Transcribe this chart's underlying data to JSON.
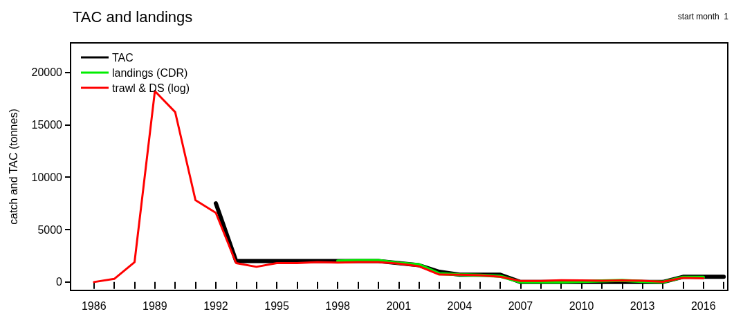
{
  "chart_data": {
    "type": "line",
    "title": "TAC and landings",
    "ylabel": "catch and TAC (tonnes)",
    "annotations": [
      "start month  1"
    ],
    "xlim": [
      1984.85,
      2017.2
    ],
    "xticks": [
      1986,
      {
        "value": 1987,
        "label": null
      },
      {
        "value": 1988,
        "label": null
      },
      1989,
      {
        "value": 1990,
        "label": null
      },
      {
        "value": 1991,
        "label": null
      },
      1992,
      {
        "value": 1993,
        "label": null
      },
      {
        "value": 1994,
        "label": null
      },
      1995,
      {
        "value": 1996,
        "label": null
      },
      {
        "value": 1997,
        "label": null
      },
      1998,
      {
        "value": 1999,
        "label": null
      },
      {
        "value": 2000,
        "label": null
      },
      2001,
      {
        "value": 2002,
        "label": null
      },
      {
        "value": 2003,
        "label": null
      },
      2004,
      {
        "value": 2005,
        "label": null
      },
      {
        "value": 2006,
        "label": null
      },
      2007,
      {
        "value": 2008,
        "label": null
      },
      {
        "value": 2009,
        "label": null
      },
      2010,
      {
        "value": 2011,
        "label": null
      },
      {
        "value": 2012,
        "label": null
      },
      2013,
      {
        "value": 2014,
        "label": null
      },
      {
        "value": 2015,
        "label": null
      },
      2016,
      {
        "value": 2017,
        "label": null
      }
    ],
    "ylim": [
      -800,
      22800
    ],
    "yticks": [
      0,
      5000,
      10000,
      15000,
      20000
    ],
    "grid": false,
    "legend": "top left",
    "marker": "none",
    "line_style": "solid",
    "series": [
      {
        "name": "TAC",
        "color": "#000000",
        "x": [
          1992,
          1993,
          1994,
          1995,
          1996,
          1997,
          1998,
          1999,
          2000,
          2001,
          2002,
          2003,
          2004,
          2005,
          2006,
          2007,
          2008,
          2009,
          2010,
          2011,
          2012,
          2013,
          2014,
          2015,
          2016,
          2017
        ],
        "values": [
          7500,
          2000,
          2000,
          2000,
          2000,
          2000,
          2000,
          2000,
          2000,
          1800,
          1600,
          980,
          700,
          700,
          700,
          0,
          0,
          0,
          0,
          0,
          0,
          0,
          0,
          500,
          500,
          500
        ]
      },
      {
        "name": "landings (CDR)",
        "color": "#00ee00",
        "x": [
          1998,
          1999,
          2000,
          2001,
          2002,
          2003,
          2004,
          2005,
          2006,
          2007,
          2008,
          2009,
          2010,
          2011,
          2012,
          2013,
          2014,
          2015,
          2016
        ],
        "values": [
          2000,
          2050,
          2050,
          1800,
          1650,
          800,
          700,
          650,
          550,
          0,
          0,
          0,
          50,
          100,
          150,
          50,
          0,
          450,
          450
        ]
      },
      {
        "name": "trawl & DS (log)",
        "color": "#ff0000",
        "x": [
          1986,
          1987,
          1988,
          1989,
          1990,
          1991,
          1992,
          1993,
          1994,
          1995,
          1996,
          1997,
          1998,
          1999,
          2000,
          2001,
          2002,
          2003,
          2004,
          2005,
          2006,
          2007,
          2008,
          2009,
          2010,
          2011,
          2012,
          2013,
          2014,
          2015,
          2016
        ],
        "values": [
          0,
          300,
          1900,
          18200,
          16200,
          7800,
          6600,
          1800,
          1450,
          1800,
          1800,
          1900,
          1850,
          1900,
          1900,
          1750,
          1500,
          710,
          700,
          650,
          500,
          100,
          100,
          180,
          150,
          120,
          150,
          130,
          20,
          400,
          350
        ]
      }
    ]
  }
}
